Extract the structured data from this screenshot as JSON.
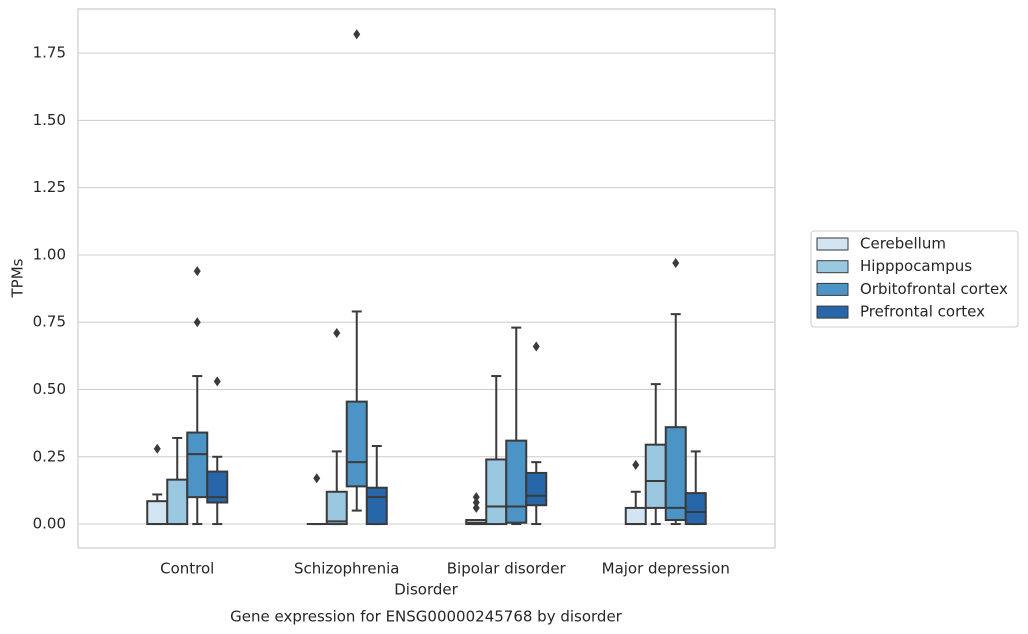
{
  "chart_data": {
    "type": "boxplot",
    "title": "Gene expression for ENSG00000245768 by disorder",
    "x_label": "Disorder",
    "y_label": "TPMs",
    "categories": [
      "Control",
      "Schizophrenia",
      "Bipolar disorder",
      "Major depression"
    ],
    "ylim": [
      -0.089,
      1.914
    ],
    "yticks": [
      {
        "value": 0,
        "label": "0.00"
      },
      0.25,
      {
        "value": 0.5,
        "label": "0.50"
      },
      0.75,
      {
        "value": 1,
        "label": "1.00"
      },
      1.25,
      {
        "value": 1.5,
        "label": "1.50"
      },
      1.75
    ],
    "grid": true,
    "legend": "right",
    "series": [
      {
        "name": "Cerebellum",
        "color": "#d3e4f3",
        "values": [
          {
            "min": 0,
            "q1": 0,
            "median": 0,
            "q3": 0.085,
            "max": 0.11,
            "fliers": [
              0.28
            ]
          },
          {
            "min": 0,
            "q1": 0,
            "median": 0,
            "q3": 0,
            "max": 0,
            "fliers": [
              0.17
            ]
          },
          {
            "min": 0,
            "q1": 0,
            "median": 0.005,
            "q3": 0.015,
            "max": 0.015,
            "fliers": [
              0.06,
              0.08,
              0.1
            ]
          },
          {
            "min": 0,
            "q1": 0,
            "median": 0,
            "q3": 0.06,
            "max": 0.12,
            "fliers": [
              0.22
            ]
          }
        ]
      },
      {
        "name": "Hipppocampus",
        "color": "#9ac8e1",
        "values": [
          {
            "min": 0,
            "q1": 0,
            "median": 0,
            "q3": 0.165,
            "max": 0.32,
            "fliers": []
          },
          {
            "min": 0,
            "q1": 0,
            "median": 0.01,
            "q3": 0.12,
            "max": 0.27,
            "fliers": [
              0.71
            ]
          },
          {
            "min": 0,
            "q1": 0,
            "median": 0.065,
            "q3": 0.24,
            "max": 0.55,
            "fliers": []
          },
          {
            "min": 0,
            "q1": 0.06,
            "median": 0.16,
            "q3": 0.295,
            "max": 0.52,
            "fliers": []
          }
        ]
      },
      {
        "name": "Orbitofrontal cortex",
        "color": "#4d94c6",
        "values": [
          {
            "min": 0,
            "q1": 0.1,
            "median": 0.26,
            "q3": 0.34,
            "max": 0.55,
            "fliers": [
              0.75,
              0.94
            ]
          },
          {
            "min": 0.05,
            "q1": 0.14,
            "median": 0.23,
            "q3": 0.455,
            "max": 0.79,
            "fliers": [
              1.82
            ]
          },
          {
            "min": 0,
            "q1": 0.005,
            "median": 0.065,
            "q3": 0.31,
            "max": 0.73,
            "fliers": []
          },
          {
            "min": 0,
            "q1": 0.015,
            "median": 0.06,
            "q3": 0.36,
            "max": 0.78,
            "fliers": [
              0.97
            ]
          }
        ]
      },
      {
        "name": "Prefrontal cortex",
        "color": "#2767a9",
        "values": [
          {
            "min": 0,
            "q1": 0.08,
            "median": 0.1,
            "q3": 0.195,
            "max": 0.25,
            "fliers": [
              0.53
            ]
          },
          {
            "min": 0,
            "q1": 0,
            "median": 0.1,
            "q3": 0.135,
            "max": 0.29,
            "fliers": []
          },
          {
            "min": 0,
            "q1": 0.07,
            "median": 0.105,
            "q3": 0.19,
            "max": 0.23,
            "fliers": [
              0.66
            ]
          },
          {
            "min": 0,
            "q1": 0,
            "median": 0.045,
            "q3": 0.115,
            "max": 0.27,
            "fliers": []
          }
        ]
      }
    ]
  }
}
